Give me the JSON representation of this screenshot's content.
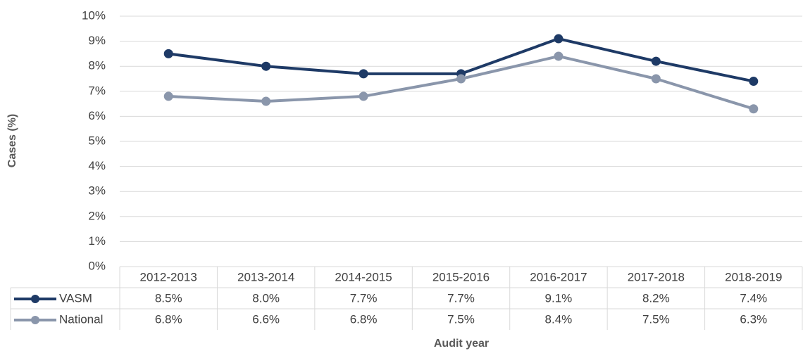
{
  "chart_data": {
    "type": "line",
    "xlabel": "Audit year",
    "ylabel": "Cases (%)",
    "categories": [
      "2012-2013",
      "2013-2014",
      "2014-2015",
      "2015-2016",
      "2016-2017",
      "2017-2018",
      "2018-2019"
    ],
    "series": [
      {
        "name": "VASM",
        "color": "#1e3a66",
        "values": [
          8.5,
          8.0,
          7.7,
          7.7,
          9.1,
          8.2,
          7.4
        ],
        "value_labels": [
          "8.5%",
          "8.0%",
          "7.7%",
          "7.7%",
          "9.1%",
          "8.2%",
          "7.4%"
        ]
      },
      {
        "name": "National",
        "color": "#8a96ab",
        "values": [
          6.8,
          6.6,
          6.8,
          7.5,
          8.4,
          7.5,
          6.3
        ],
        "value_labels": [
          "6.8%",
          "6.6%",
          "6.8%",
          "7.5%",
          "8.4%",
          "7.5%",
          "6.3%"
        ]
      }
    ],
    "ylim": [
      0,
      10
    ],
    "yticks": [
      {
        "value": 0,
        "label": "0%"
      },
      {
        "value": 1,
        "label": "1%"
      },
      {
        "value": 2,
        "label": "2%"
      },
      {
        "value": 3,
        "label": "3%"
      },
      {
        "value": 4,
        "label": "4%"
      },
      {
        "value": 5,
        "label": "5%"
      },
      {
        "value": 6,
        "label": "6%"
      },
      {
        "value": 7,
        "label": "7%"
      },
      {
        "value": 8,
        "label": "8%"
      },
      {
        "value": 9,
        "label": "9%"
      },
      {
        "value": 10,
        "label": "10%"
      }
    ],
    "grid": true
  }
}
